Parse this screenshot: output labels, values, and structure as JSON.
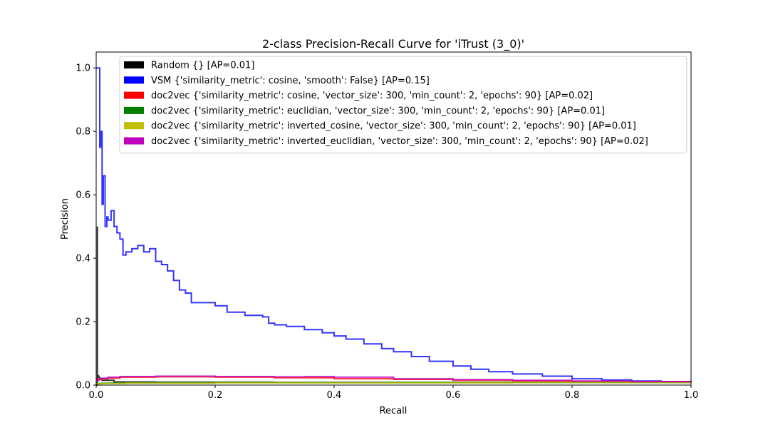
{
  "chart_data": {
    "type": "line",
    "title": "2-class Precision-Recall Curve for 'iTrust (3_0)'",
    "xlabel": "Recall",
    "ylabel": "Precision",
    "xlim": [
      0.0,
      1.0
    ],
    "ylim": [
      0.0,
      1.05
    ],
    "x_ticks": [
      0.0,
      0.2,
      0.4,
      0.6,
      0.8,
      1.0
    ],
    "y_ticks": [
      0.0,
      0.2,
      0.4,
      0.6,
      0.8,
      1.0
    ],
    "x_tick_labels": [
      "0.0",
      "0.2",
      "0.4",
      "0.6",
      "0.8",
      "1.0"
    ],
    "y_tick_labels": [
      "0.0",
      "0.2",
      "0.4",
      "0.6",
      "0.8",
      "1.0"
    ],
    "grid": false,
    "legend_position": "top-right",
    "series": [
      {
        "name": "Random {} [AP=0.01]",
        "color": "#000000",
        "x": [
          0.0,
          0.002,
          0.002,
          0.004,
          0.006,
          0.01,
          0.03,
          0.1,
          0.3,
          0.5,
          0.7,
          0.9,
          1.0
        ],
        "y": [
          0.0,
          0.5,
          0.03,
          0.025,
          0.02,
          0.015,
          0.01,
          0.009,
          0.008,
          0.008,
          0.008,
          0.008,
          0.008
        ]
      },
      {
        "name": "VSM {'similarity_metric': cosine, 'smooth': False} [AP=0.15]",
        "color": "#0000ff",
        "x": [
          0.0,
          0.006,
          0.006,
          0.008,
          0.01,
          0.012,
          0.015,
          0.018,
          0.02,
          0.025,
          0.03,
          0.035,
          0.04,
          0.045,
          0.05,
          0.06,
          0.07,
          0.08,
          0.09,
          0.1,
          0.11,
          0.12,
          0.13,
          0.14,
          0.15,
          0.16,
          0.18,
          0.2,
          0.22,
          0.25,
          0.28,
          0.29,
          0.3,
          0.32,
          0.35,
          0.38,
          0.4,
          0.42,
          0.45,
          0.48,
          0.5,
          0.53,
          0.56,
          0.6,
          0.63,
          0.66,
          0.7,
          0.75,
          0.8,
          0.85,
          0.9,
          0.95,
          1.0
        ],
        "y": [
          1.0,
          1.0,
          0.75,
          0.8,
          0.57,
          0.66,
          0.5,
          0.53,
          0.52,
          0.55,
          0.5,
          0.48,
          0.46,
          0.41,
          0.42,
          0.43,
          0.44,
          0.42,
          0.43,
          0.39,
          0.38,
          0.36,
          0.33,
          0.3,
          0.29,
          0.26,
          0.26,
          0.25,
          0.23,
          0.22,
          0.215,
          0.195,
          0.19,
          0.185,
          0.175,
          0.165,
          0.155,
          0.145,
          0.13,
          0.115,
          0.105,
          0.09,
          0.075,
          0.06,
          0.05,
          0.042,
          0.035,
          0.028,
          0.02,
          0.016,
          0.013,
          0.011,
          0.01
        ]
      },
      {
        "name": "doc2vec {'similarity_metric': cosine, 'vector_size': 300, 'min_count': 2, 'epochs': 90} [AP=0.02]",
        "color": "#ff0000",
        "x": [
          0.0,
          0.005,
          0.01,
          0.02,
          0.04,
          0.1,
          0.2,
          0.3,
          0.4,
          0.5,
          0.6,
          0.7,
          0.8,
          0.9,
          1.0
        ],
        "y": [
          0.02,
          0.018,
          0.02,
          0.022,
          0.025,
          0.026,
          0.025,
          0.023,
          0.02,
          0.018,
          0.015,
          0.013,
          0.012,
          0.011,
          0.01
        ]
      },
      {
        "name": "doc2vec {'similarity_metric': euclidian, 'vector_size': 300, 'min_count': 2, 'epochs': 90} [AP=0.01]",
        "color": "#008000",
        "x": [
          0.0,
          0.01,
          0.05,
          0.1,
          0.2,
          0.3,
          0.4,
          0.5,
          0.6,
          0.7,
          0.8,
          0.9,
          1.0
        ],
        "y": [
          0.005,
          0.006,
          0.007,
          0.007,
          0.008,
          0.008,
          0.008,
          0.008,
          0.008,
          0.008,
          0.008,
          0.008,
          0.008
        ]
      },
      {
        "name": "doc2vec {'similarity_metric': inverted_cosine, 'vector_size': 300, 'min_count': 2, 'epochs': 90} [AP=0.01]",
        "color": "#bfbf00",
        "x": [
          0.0,
          0.01,
          0.05,
          0.1,
          0.2,
          0.3,
          0.4,
          0.5,
          0.6,
          0.7,
          0.8,
          0.9,
          1.0
        ],
        "y": [
          0.004,
          0.005,
          0.006,
          0.006,
          0.007,
          0.007,
          0.007,
          0.007,
          0.007,
          0.008,
          0.008,
          0.008,
          0.008
        ]
      },
      {
        "name": "doc2vec {'similarity_metric': inverted_euclidian, 'vector_size': 300, 'min_count': 2, 'epochs': 90} [AP=0.02]",
        "color": "#bf00bf",
        "x": [
          0.0,
          0.005,
          0.01,
          0.02,
          0.04,
          0.1,
          0.2,
          0.3,
          0.35,
          0.4,
          0.5,
          0.6,
          0.7,
          0.8,
          0.9,
          1.0
        ],
        "y": [
          0.015,
          0.02,
          0.022,
          0.025,
          0.027,
          0.028,
          0.027,
          0.026,
          0.027,
          0.025,
          0.02,
          0.017,
          0.015,
          0.013,
          0.011,
          0.01
        ]
      }
    ]
  }
}
